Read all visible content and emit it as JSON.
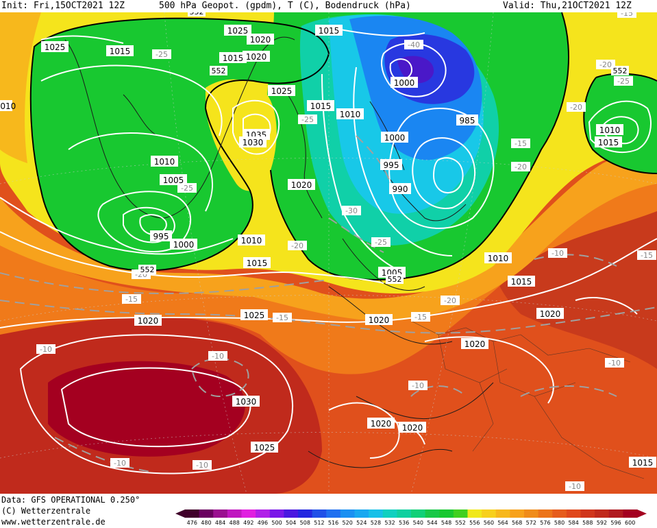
{
  "header": {
    "init": "Init: Fri,15OCT2021 12Z",
    "title": "500 hPa Geopot. (gpdm), T (C), Bodendruck (hPa)",
    "valid": "Valid: Thu,21OCT2021 12Z"
  },
  "footer": {
    "data_source": "Data: GFS OPERATIONAL 0.250°",
    "copyright": "(C) Wetterzentrale",
    "website": "www.wetterzentrale.de"
  },
  "map": {
    "fill_colors": {
      "deep_red": "#a40020",
      "dark_red": "#c02a1c",
      "red_orange": "#e0501c",
      "orange": "#f07a1a",
      "light_orange": "#f7a21c",
      "yellow": "#f5e41c",
      "green": "#18c830",
      "green_light": "#3cd85a",
      "teal": "#10d0a8",
      "cyan": "#18c8e8",
      "blue": "#1a86f2",
      "deep_blue": "#2838e0",
      "indigo": "#4a18c8"
    },
    "isobar_labels": [
      {
        "text": "1025"
      },
      {
        "text": "1015"
      },
      {
        "text": "1025"
      },
      {
        "text": "1020"
      },
      {
        "text": "1015"
      },
      {
        "text": "1020"
      },
      {
        "text": "1025"
      },
      {
        "text": "1015"
      },
      {
        "text": "1010"
      },
      {
        "text": "1035"
      },
      {
        "text": "1030"
      },
      {
        "text": "1010"
      },
      {
        "text": "1005"
      },
      {
        "text": "995"
      },
      {
        "text": "1000"
      },
      {
        "text": "1010"
      },
      {
        "text": "1015"
      },
      {
        "text": "1020"
      },
      {
        "text": "1025"
      },
      {
        "text": "1020"
      },
      {
        "text": "1030"
      },
      {
        "text": "1025"
      },
      {
        "text": "1000"
      },
      {
        "text": "985"
      },
      {
        "text": "1000"
      },
      {
        "text": "995"
      },
      {
        "text": "990"
      },
      {
        "text": "1005"
      },
      {
        "text": "1010"
      },
      {
        "text": "1015"
      },
      {
        "text": "1020"
      },
      {
        "text": "1020"
      },
      {
        "text": "1020"
      },
      {
        "text": "1020"
      },
      {
        "text": "1020"
      },
      {
        "text": "1010"
      },
      {
        "text": "1015"
      },
      {
        "text": "1015"
      },
      {
        "text": "1015"
      },
      {
        "text": "1010"
      }
    ],
    "temperature_labels": [
      {
        "text": "-25"
      },
      {
        "text": "-25"
      },
      {
        "text": "-25"
      },
      {
        "text": "-20"
      },
      {
        "text": "-15"
      },
      {
        "text": "-15"
      },
      {
        "text": "-10"
      },
      {
        "text": "-10"
      },
      {
        "text": "-10"
      },
      {
        "text": "-10"
      },
      {
        "text": "-40"
      },
      {
        "text": "-30"
      },
      {
        "text": "-25"
      },
      {
        "text": "-20"
      },
      {
        "text": "-20"
      },
      {
        "text": "-15"
      },
      {
        "text": "-15"
      },
      {
        "text": "-15"
      },
      {
        "text": "-10"
      },
      {
        "text": "-10"
      },
      {
        "text": "-10"
      },
      {
        "text": "-15"
      },
      {
        "text": "-20"
      },
      {
        "text": "-25"
      },
      {
        "text": "-20"
      },
      {
        "text": "-20"
      },
      {
        "text": "-10"
      }
    ],
    "height_labels": [
      {
        "text": "552"
      },
      {
        "text": "552"
      },
      {
        "text": "552"
      },
      {
        "text": "552"
      },
      {
        "text": "552"
      }
    ]
  },
  "colorbar": {
    "values": [
      "476",
      "480",
      "484",
      "488",
      "492",
      "496",
      "500",
      "504",
      "508",
      "512",
      "516",
      "520",
      "524",
      "528",
      "532",
      "536",
      "540",
      "544",
      "548",
      "552",
      "556",
      "560",
      "564",
      "568",
      "572",
      "576",
      "580",
      "584",
      "588",
      "592",
      "596",
      "600"
    ],
    "colors": [
      "#40002a",
      "#6a0060",
      "#9a1090",
      "#c018c0",
      "#e020e0",
      "#b020e8",
      "#7a18e8",
      "#4a18e0",
      "#2428e0",
      "#2050e8",
      "#2070f0",
      "#1a90f2",
      "#18a8f0",
      "#18c0e8",
      "#10d0c0",
      "#10d0a0",
      "#10d078",
      "#18c848",
      "#18c830",
      "#40d020",
      "#f0e81c",
      "#f7d01c",
      "#f7b81c",
      "#f7a21c",
      "#f08c1a",
      "#ec741a",
      "#e65c1c",
      "#e0481c",
      "#d0361c",
      "#c02a1c",
      "#b01a20",
      "#a40020"
    ]
  }
}
